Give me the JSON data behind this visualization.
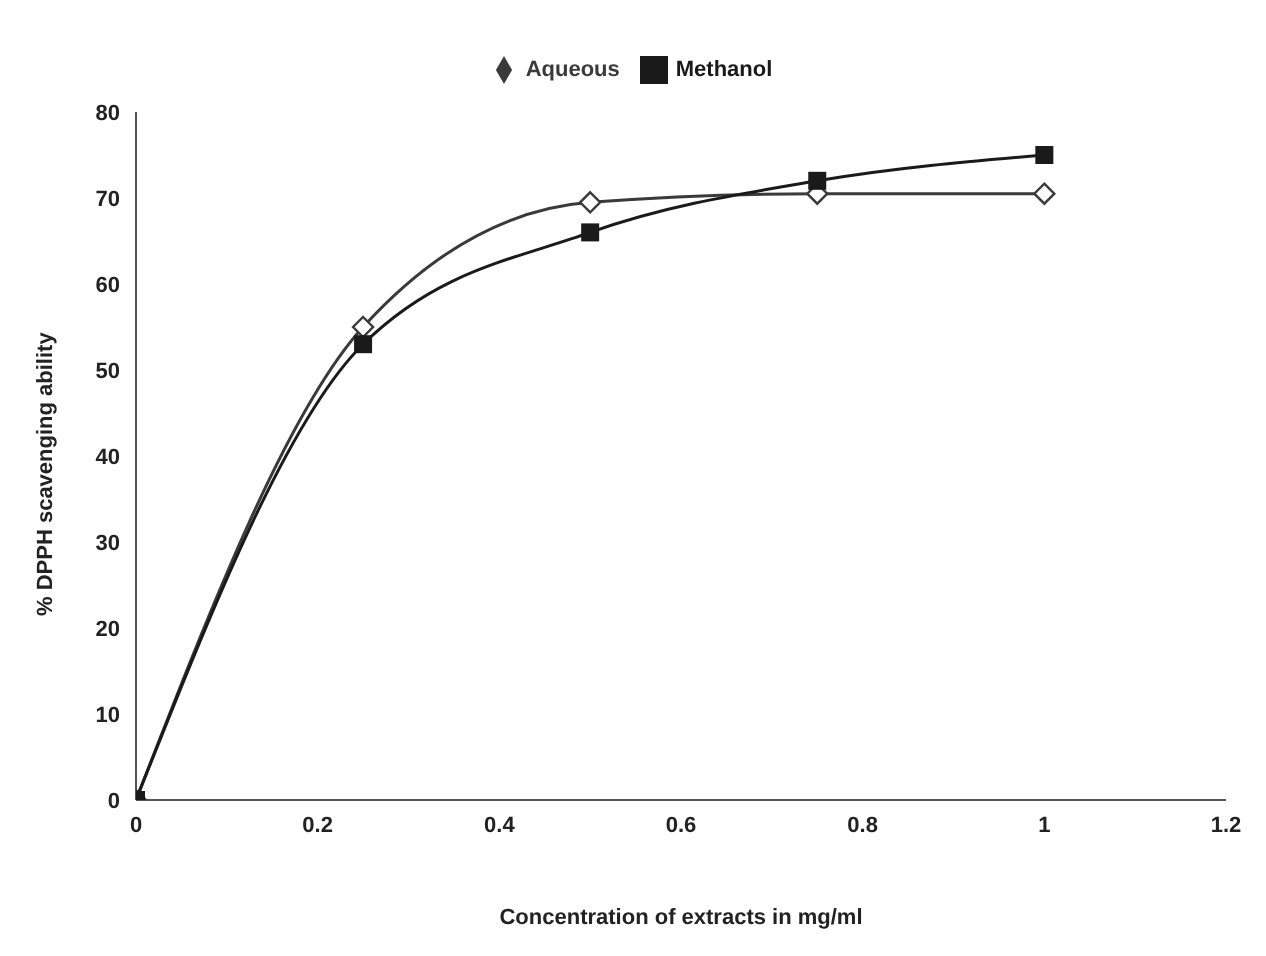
{
  "chart_data": {
    "type": "line",
    "xlabel": "Concentration of extracts in mg/ml",
    "ylabel": "% DPPH scavenging ability",
    "x": [
      0,
      0.25,
      0.5,
      0.75,
      1
    ],
    "series": [
      {
        "name": "Aqueous",
        "color": "#3a3a3a",
        "marker": "diamond",
        "values": [
          0,
          55,
          69.5,
          70.5,
          70.5
        ]
      },
      {
        "name": "Methanol",
        "color": "#1a1a1a",
        "marker": "square",
        "values": [
          0,
          53,
          66,
          72,
          75
        ]
      }
    ],
    "xlim": [
      0,
      1.2
    ],
    "xticks": [
      0,
      0.2,
      0.4,
      0.6,
      0.8,
      1,
      1.2
    ],
    "ylim": [
      0,
      80
    ],
    "yticks": [
      0,
      10,
      20,
      30,
      40,
      50,
      60,
      70,
      80
    ],
    "grid": false,
    "legend": "top",
    "line_style": "solid"
  }
}
